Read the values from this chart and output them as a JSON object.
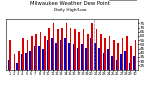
{
  "title": "Milwaukee Weather Dew Point",
  "subtitle": "Daily High/Low",
  "high_values": [
    55,
    38,
    42,
    58,
    55,
    60,
    62,
    65,
    60,
    70,
    75,
    68,
    70,
    75,
    70,
    68,
    65,
    68,
    62,
    75,
    68,
    62,
    58,
    60,
    55,
    52,
    58,
    60,
    48,
    55
  ],
  "low_values": [
    32,
    20,
    28,
    38,
    40,
    42,
    48,
    48,
    44,
    55,
    58,
    52,
    55,
    58,
    52,
    50,
    46,
    50,
    46,
    58,
    52,
    46,
    40,
    44,
    36,
    32,
    38,
    42,
    28,
    36
  ],
  "high_color": "#dd0000",
  "low_color": "#0000cc",
  "background_color": "#ffffff",
  "ymin": 20,
  "ymax": 80,
  "yticks": [
    25,
    30,
    35,
    40,
    45,
    50,
    55,
    60,
    65,
    70,
    75
  ],
  "ytick_labels": [
    "25",
    "30",
    "35",
    "40",
    "45",
    "50",
    "55",
    "60",
    "65",
    "70",
    "75"
  ],
  "xtick_labels": [
    "1",
    "2",
    "3",
    "4",
    "5",
    "6",
    "7",
    "8",
    "9",
    "10",
    "11",
    "12",
    "13",
    "14",
    "15",
    "16",
    "17",
    "18",
    "19",
    "20",
    "21",
    "22",
    "23",
    "24",
    "25",
    "26",
    "27",
    "28",
    "29",
    "30"
  ],
  "legend_high": "High",
  "legend_low": "Low",
  "dashed_line_x": 19.5,
  "n_bars": 30
}
